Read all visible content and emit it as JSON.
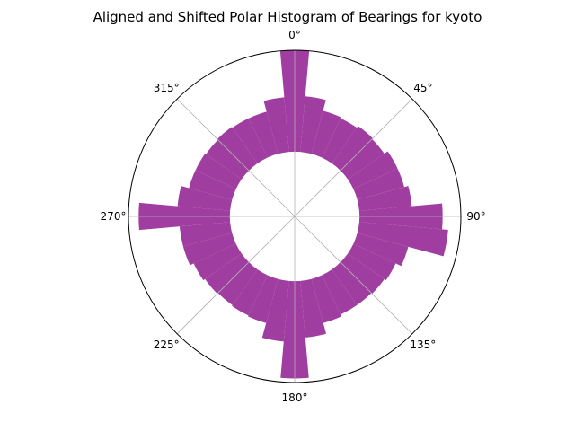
{
  "chart_data": {
    "type": "polar-bar",
    "title": "Aligned and Shifted Polar Histogram of Bearings for kyoto",
    "angular_direction": "clockwise",
    "zero_location": "N",
    "angular_ticks": [
      {
        "angle": 0,
        "label": "0°"
      },
      {
        "angle": 45,
        "label": "45°"
      },
      {
        "angle": 90,
        "label": "90°"
      },
      {
        "angle": 135,
        "label": "135°"
      },
      {
        "angle": 180,
        "label": "180°"
      },
      {
        "angle": 225,
        "label": "225°"
      },
      {
        "angle": 270,
        "label": "270°"
      },
      {
        "angle": 315,
        "label": "315°"
      }
    ],
    "bin_width_deg": 10,
    "bin_start_deg": -5,
    "inner_radius_fraction": 0.39,
    "r_max": 1.0,
    "bar_color": "#9b339b",
    "grid": true,
    "bins": [
      {
        "center": 0,
        "value": 1.0
      },
      {
        "center": 10,
        "value": 0.55
      },
      {
        "center": 20,
        "value": 0.44
      },
      {
        "center": 30,
        "value": 0.43
      },
      {
        "center": 40,
        "value": 0.45
      },
      {
        "center": 50,
        "value": 0.44
      },
      {
        "center": 60,
        "value": 0.48
      },
      {
        "center": 70,
        "value": 0.48
      },
      {
        "center": 80,
        "value": 0.52
      },
      {
        "center": 90,
        "value": 0.82
      },
      {
        "center": 100,
        "value": 0.88
      },
      {
        "center": 110,
        "value": 0.52
      },
      {
        "center": 120,
        "value": 0.46
      },
      {
        "center": 130,
        "value": 0.44
      },
      {
        "center": 140,
        "value": 0.43
      },
      {
        "center": 150,
        "value": 0.43
      },
      {
        "center": 160,
        "value": 0.45
      },
      {
        "center": 170,
        "value": 0.56
      },
      {
        "center": 180,
        "value": 0.96
      },
      {
        "center": 190,
        "value": 0.6
      },
      {
        "center": 200,
        "value": 0.45
      },
      {
        "center": 210,
        "value": 0.44
      },
      {
        "center": 220,
        "value": 0.43
      },
      {
        "center": 230,
        "value": 0.44
      },
      {
        "center": 240,
        "value": 0.46
      },
      {
        "center": 250,
        "value": 0.5
      },
      {
        "center": 260,
        "value": 0.5
      },
      {
        "center": 270,
        "value": 0.9
      },
      {
        "center": 280,
        "value": 0.52
      },
      {
        "center": 290,
        "value": 0.44
      },
      {
        "center": 300,
        "value": 0.44
      },
      {
        "center": 310,
        "value": 0.43
      },
      {
        "center": 320,
        "value": 0.44
      },
      {
        "center": 330,
        "value": 0.43
      },
      {
        "center": 340,
        "value": 0.43
      },
      {
        "center": 350,
        "value": 0.54
      }
    ]
  }
}
